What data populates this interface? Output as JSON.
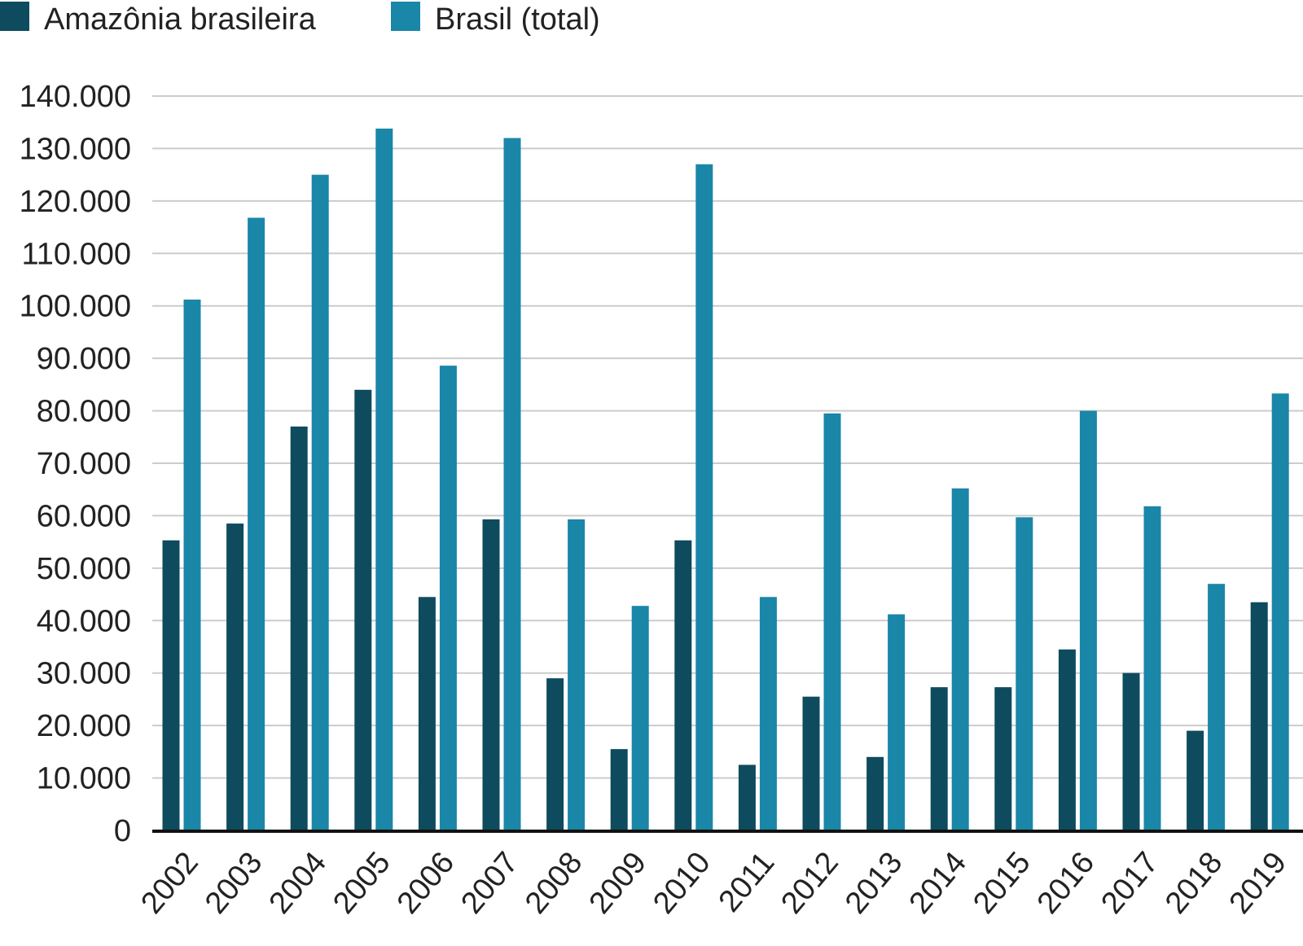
{
  "chart_data": {
    "type": "bar",
    "title": "",
    "xlabel": "",
    "ylabel": "",
    "categories": [
      "2002",
      "2003",
      "2004",
      "2005",
      "2006",
      "2007",
      "2008",
      "2009",
      "2010",
      "2011",
      "2012",
      "2013",
      "2014",
      "2015",
      "2016",
      "2017",
      "2018",
      "2019"
    ],
    "series": [
      {
        "name": "Amazônia brasileira",
        "color": "#0e4b5e",
        "values": [
          55300,
          58500,
          77000,
          84000,
          44500,
          59300,
          29000,
          15500,
          55300,
          12500,
          25500,
          14000,
          27300,
          27300,
          34500,
          30000,
          19000,
          43500
        ]
      },
      {
        "name": "Brasil (total)",
        "color": "#1a86a8",
        "values": [
          101200,
          116800,
          125000,
          133800,
          88600,
          132000,
          59300,
          42800,
          127000,
          44500,
          79500,
          41200,
          65200,
          59700,
          80000,
          61800,
          47000,
          83300
        ]
      }
    ],
    "ylim": [
      0,
      140000
    ],
    "yticks": [
      "0",
      "10.000",
      "20.000",
      "30.000",
      "40.000",
      "50.000",
      "60.000",
      "70.000",
      "80.000",
      "90.000",
      "100.000",
      "110.000",
      "120.000",
      "130.000",
      "140.000"
    ],
    "ytick_step": 10000,
    "grid": true,
    "legend_position": "top-left"
  }
}
